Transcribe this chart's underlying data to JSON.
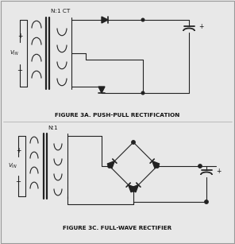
{
  "bg_color": "#e8e8e8",
  "inner_bg": "#f5f5f5",
  "title1": "FIGURE 3A. PUSH-PULL RECTIFICATION",
  "title2": "FIGURE 3C. FULL-WAVE RECTIFIER",
  "title_fontsize": 5.2,
  "fig_width": 2.96,
  "fig_height": 3.07,
  "dpi": 100
}
